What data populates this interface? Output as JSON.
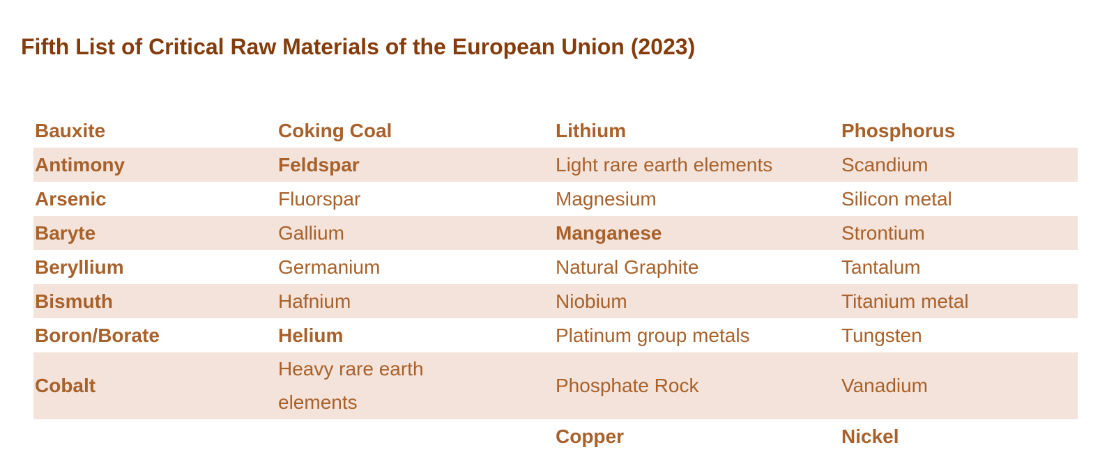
{
  "header": {
    "title": "Fifth List of Critical Raw Materials of the European Union (2023)"
  },
  "table": {
    "rows": [
      [
        "Bauxite",
        "Coking Coal",
        "Lithium",
        "Phosphorus"
      ],
      [
        "Antimony",
        "Feldspar",
        "Light rare earth elements",
        "Scandium"
      ],
      [
        "Arsenic",
        "Fluorspar",
        "Magnesium",
        "Silicon metal"
      ],
      [
        "Baryte",
        "Gallium",
        "Manganese",
        "Strontium"
      ],
      [
        "Beryllium",
        "Germanium",
        "Natural Graphite",
        "Tantalum"
      ],
      [
        "Bismuth",
        "Hafnium",
        "Niobium",
        "Titanium metal"
      ],
      [
        "Boron/Borate",
        "Helium",
        "Platinum group metals",
        "Tungsten"
      ],
      [
        "Cobalt",
        "Heavy rare earth elements",
        "Phosphate Rock",
        "Vanadium"
      ],
      [
        null,
        null,
        "Copper",
        "Nickel"
      ]
    ]
  }
}
